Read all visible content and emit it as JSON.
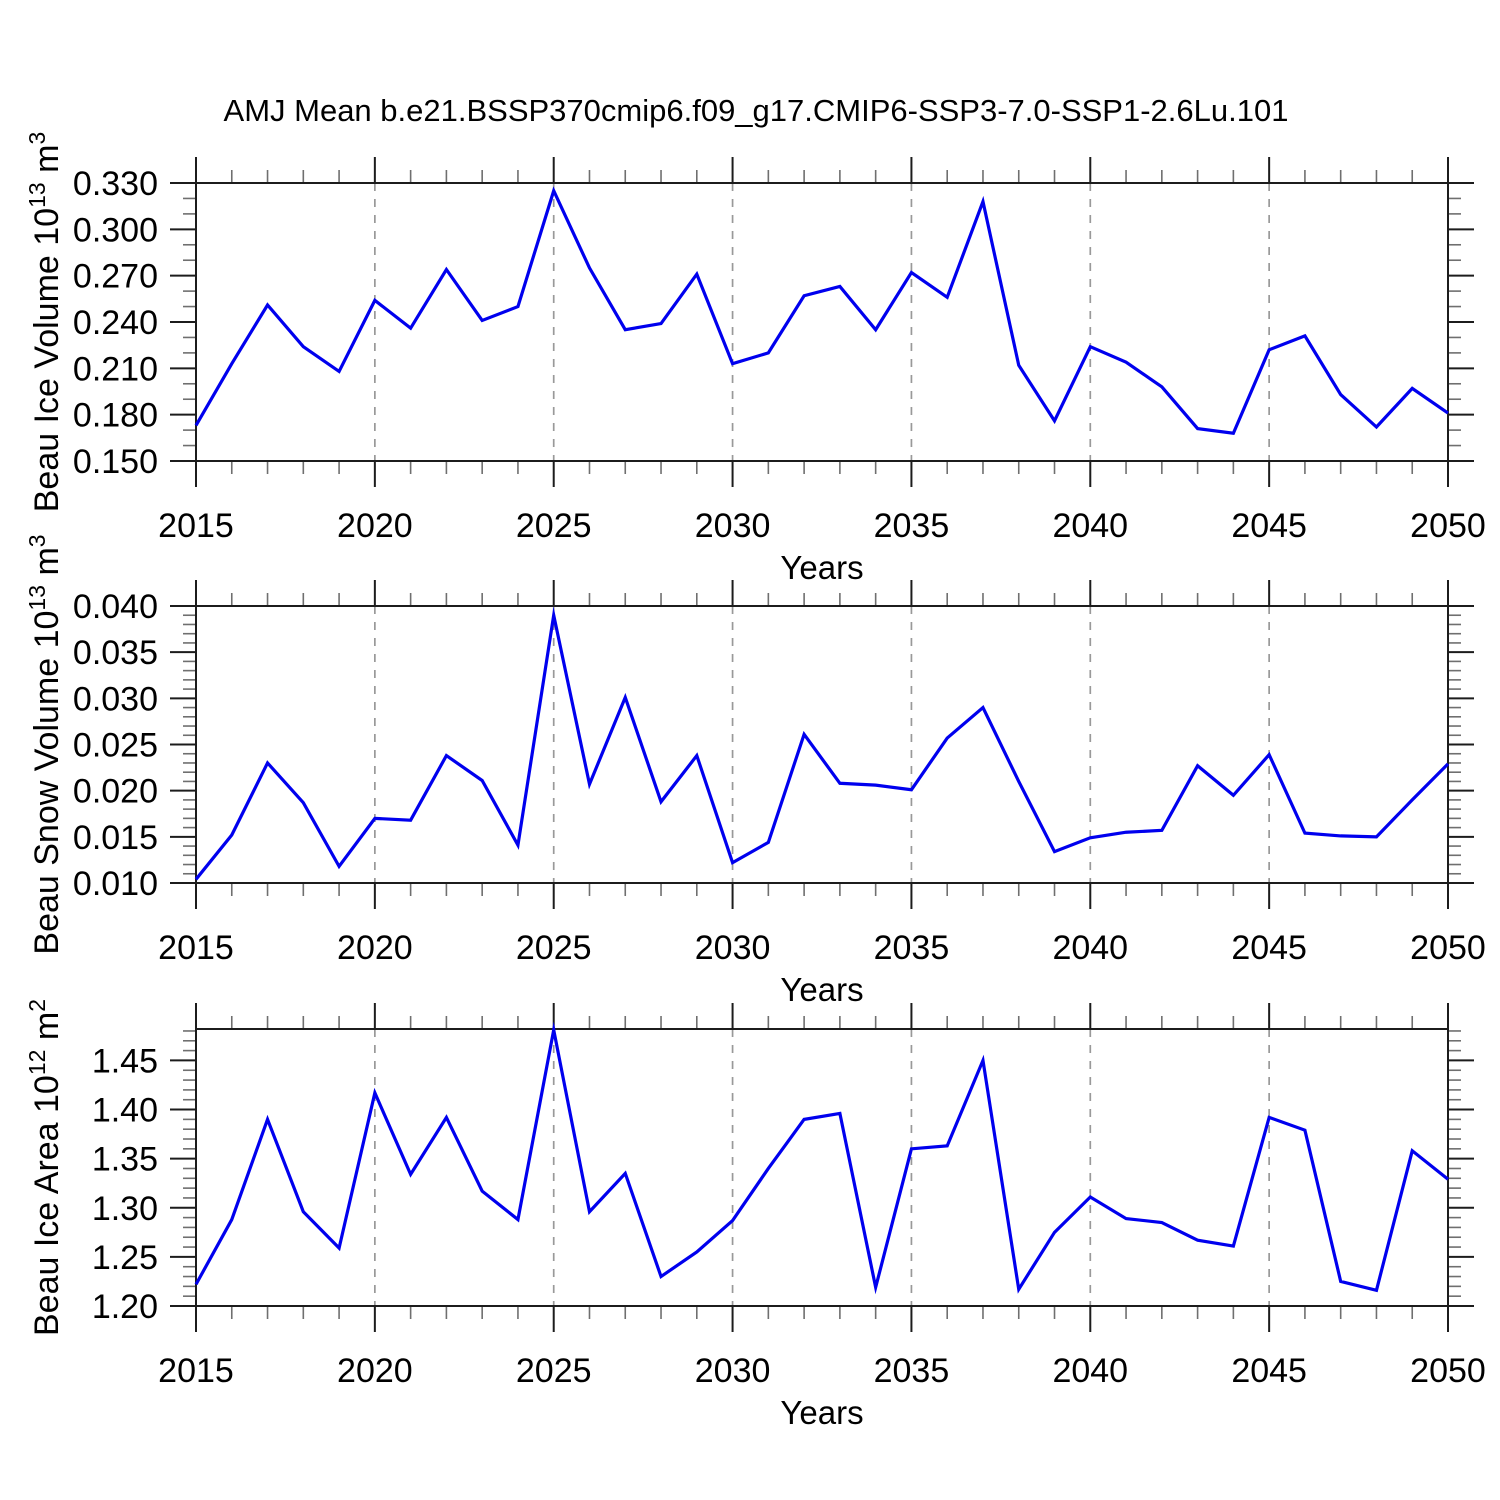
{
  "title": "AMJ Mean b.e21.BSSP370cmip6.f09_g17.CMIP6-SSP3-7.0-SSP1-2.6Lu.101",
  "colors": {
    "line": "#0000EE",
    "frame": "#1c1c1c",
    "major_tick": "#1c1c1c",
    "minor_tick": "#6f6f6f",
    "grid": "#999999",
    "text": "#000000",
    "background": "#ffffff"
  },
  "chart_data": [
    {
      "type": "line",
      "name": "beau-ice-volume",
      "ylabel": "Beau Ice Volume 10^13 m^3",
      "ylabel_parts": [
        {
          "t": "Beau Ice Volume 10"
        },
        {
          "t": "13",
          "sup": true
        },
        {
          "t": " m"
        },
        {
          "t": "3",
          "sup": true
        }
      ],
      "xlabel": "Years",
      "x": [
        2015,
        2016,
        2017,
        2018,
        2019,
        2020,
        2021,
        2022,
        2023,
        2024,
        2025,
        2026,
        2027,
        2028,
        2029,
        2030,
        2031,
        2032,
        2033,
        2034,
        2035,
        2036,
        2037,
        2038,
        2039,
        2040,
        2041,
        2042,
        2043,
        2044,
        2045,
        2046,
        2047,
        2048,
        2049,
        2050
      ],
      "values": [
        0.173,
        0.213,
        0.251,
        0.224,
        0.208,
        0.254,
        0.236,
        0.274,
        0.241,
        0.25,
        0.325,
        0.275,
        0.235,
        0.239,
        0.271,
        0.213,
        0.22,
        0.257,
        0.263,
        0.235,
        0.272,
        0.256,
        0.318,
        0.212,
        0.176,
        0.224,
        0.214,
        0.198,
        0.171,
        0.168,
        0.222,
        0.231,
        0.193,
        0.172,
        0.197,
        0.181
      ],
      "xlim": [
        2015,
        2050
      ],
      "ylim": [
        0.15,
        0.33
      ],
      "yticks": [
        0.15,
        0.18,
        0.21,
        0.24,
        0.27,
        0.3,
        0.33
      ],
      "ytick_labels": [
        "0.150",
        "0.180",
        "0.210",
        "0.240",
        "0.270",
        "0.300",
        "0.330"
      ],
      "y_minor_step": 0.01,
      "xticks": [
        2015,
        2020,
        2025,
        2030,
        2035,
        2040,
        2045,
        2050
      ],
      "xtick_labels": [
        "2015",
        "2020",
        "2025",
        "2030",
        "2035",
        "2040",
        "2045",
        "2050"
      ],
      "x_minor_step": 1,
      "grid_years": [
        2020,
        2025,
        2030,
        2035,
        2040,
        2045
      ],
      "grid": true,
      "legend": "none"
    },
    {
      "type": "line",
      "name": "beau-snow-volume",
      "ylabel": "Beau Snow Volume 10^13 m^3",
      "ylabel_parts": [
        {
          "t": "Beau Snow Volume 10"
        },
        {
          "t": "13",
          "sup": true
        },
        {
          "t": " m"
        },
        {
          "t": "3",
          "sup": true
        }
      ],
      "xlabel": "Years",
      "x": [
        2015,
        2016,
        2017,
        2018,
        2019,
        2020,
        2021,
        2022,
        2023,
        2024,
        2025,
        2026,
        2027,
        2028,
        2029,
        2030,
        2031,
        2032,
        2033,
        2034,
        2035,
        2036,
        2037,
        2038,
        2039,
        2040,
        2041,
        2042,
        2043,
        2044,
        2045,
        2046,
        2047,
        2048,
        2049,
        2050
      ],
      "values": [
        0.0104,
        0.0152,
        0.023,
        0.0187,
        0.0118,
        0.017,
        0.0168,
        0.0238,
        0.0211,
        0.0141,
        0.039,
        0.0207,
        0.0301,
        0.0188,
        0.0238,
        0.0122,
        0.0144,
        0.0261,
        0.0208,
        0.0206,
        0.0201,
        0.0257,
        0.029,
        0.021,
        0.0134,
        0.0149,
        0.0155,
        0.0157,
        0.0227,
        0.0195,
        0.0239,
        0.0154,
        0.0151,
        0.015,
        0.019,
        0.0229
      ],
      "xlim": [
        2015,
        2050
      ],
      "ylim": [
        0.01,
        0.04
      ],
      "yticks": [
        0.01,
        0.015,
        0.02,
        0.025,
        0.03,
        0.035,
        0.04
      ],
      "ytick_labels": [
        "0.010",
        "0.015",
        "0.020",
        "0.025",
        "0.030",
        "0.035",
        "0.040"
      ],
      "y_minor_step": 0.001,
      "xticks": [
        2015,
        2020,
        2025,
        2030,
        2035,
        2040,
        2045,
        2050
      ],
      "xtick_labels": [
        "2015",
        "2020",
        "2025",
        "2030",
        "2035",
        "2040",
        "2045",
        "2050"
      ],
      "x_minor_step": 1,
      "grid_years": [
        2020,
        2025,
        2030,
        2035,
        2040,
        2045
      ],
      "grid": true,
      "legend": "none"
    },
    {
      "type": "line",
      "name": "beau-ice-area",
      "ylabel": "Beau Ice Area 10^12 m^2",
      "ylabel_parts": [
        {
          "t": "Beau Ice Area 10"
        },
        {
          "t": "12",
          "sup": true
        },
        {
          "t": " m"
        },
        {
          "t": "2",
          "sup": true
        }
      ],
      "xlabel": "Years",
      "x": [
        2015,
        2016,
        2017,
        2018,
        2019,
        2020,
        2021,
        2022,
        2023,
        2024,
        2025,
        2026,
        2027,
        2028,
        2029,
        2030,
        2031,
        2032,
        2033,
        2034,
        2035,
        2036,
        2037,
        2038,
        2039,
        2040,
        2041,
        2042,
        2043,
        2044,
        2045,
        2046,
        2047,
        2048,
        2049,
        2050
      ],
      "values": [
        1.222,
        1.288,
        1.39,
        1.296,
        1.259,
        1.417,
        1.334,
        1.392,
        1.317,
        1.288,
        1.481,
        1.296,
        1.335,
        1.23,
        1.255,
        1.287,
        1.34,
        1.39,
        1.396,
        1.219,
        1.36,
        1.363,
        1.45,
        1.217,
        1.275,
        1.311,
        1.289,
        1.285,
        1.267,
        1.261,
        1.392,
        1.379,
        1.225,
        1.216,
        1.358,
        1.329
      ],
      "xlim": [
        2015,
        2050
      ],
      "ylim": [
        1.2,
        1.482
      ],
      "yticks": [
        1.2,
        1.25,
        1.3,
        1.35,
        1.4,
        1.45
      ],
      "ytick_labels": [
        "1.20",
        "1.25",
        "1.30",
        "1.35",
        "1.40",
        "1.45"
      ],
      "y_minor_step": 0.01,
      "xticks": [
        2015,
        2020,
        2025,
        2030,
        2035,
        2040,
        2045,
        2050
      ],
      "xtick_labels": [
        "2015",
        "2020",
        "2025",
        "2030",
        "2035",
        "2040",
        "2045",
        "2050"
      ],
      "x_minor_step": 1,
      "grid_years": [
        2020,
        2025,
        2030,
        2035,
        2040,
        2045
      ],
      "grid": true,
      "legend": "none"
    }
  ]
}
